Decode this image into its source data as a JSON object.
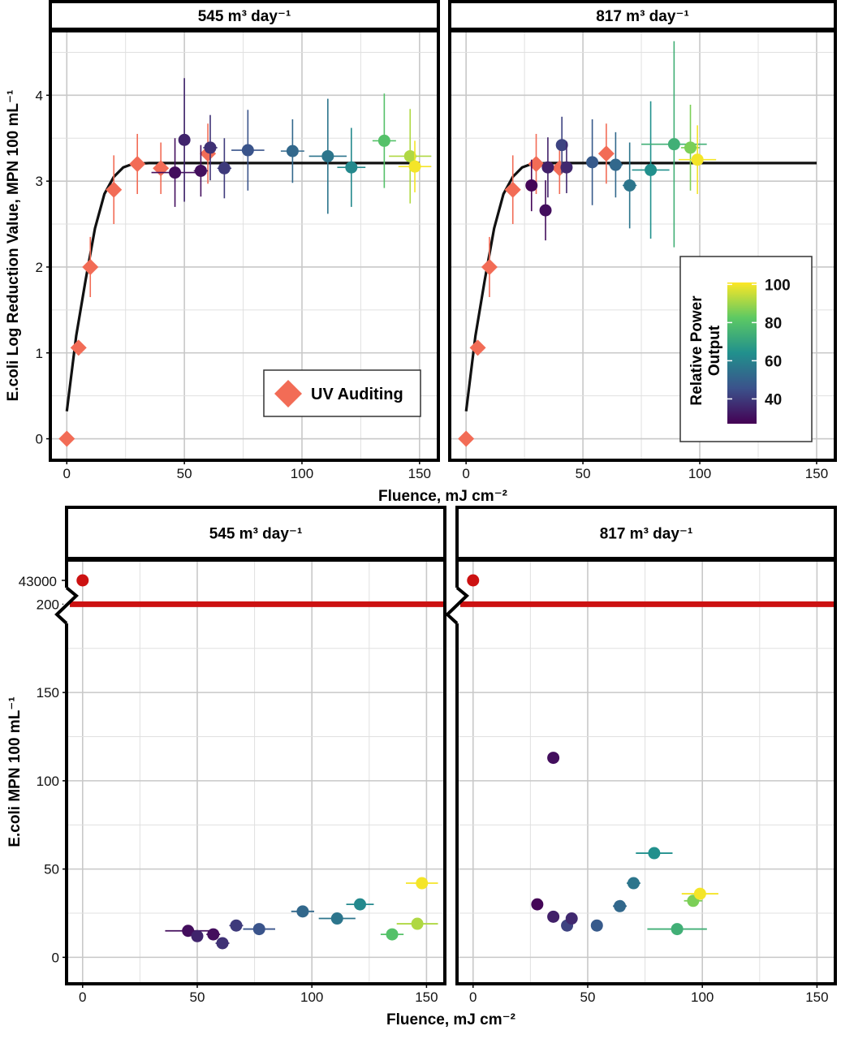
{
  "chart_data": [
    {
      "type": "scatter",
      "panel_titles": [
        "545 m³ day⁻¹",
        "817 m³ day⁻¹"
      ],
      "xlabel": "Fluence, mJ cm⁻²",
      "ylabel": "E.coli Log Reduction Value, MPN 100 mL⁻¹",
      "xlim": [
        -7,
        158
      ],
      "ylim": [
        -0.25,
        4.75
      ],
      "x_ticks": [
        0,
        50,
        100,
        150
      ],
      "y_ticks": [
        0,
        1,
        2,
        3,
        4
      ],
      "grid": true,
      "legend": {
        "label": "UV Auditing",
        "placement": "bottom-right",
        "color": "#f26c56"
      },
      "colorbar": {
        "title": [
          "Relative Power",
          "Output"
        ],
        "range": [
          27,
          101
        ],
        "ticks": [
          40,
          60,
          80,
          100
        ],
        "placement": "right",
        "colors": [
          "#440154",
          "#3b528b",
          "#21908d",
          "#5dc963",
          "#fde725"
        ]
      },
      "auditing_curve": [
        [
          0,
          0.32
        ],
        [
          4,
          1.2
        ],
        [
          8,
          1.85
        ],
        [
          12,
          2.45
        ],
        [
          16,
          2.85
        ],
        [
          20,
          3.05
        ],
        [
          24,
          3.16
        ],
        [
          28,
          3.2
        ],
        [
          35,
          3.21
        ],
        [
          150,
          3.21
        ]
      ],
      "panels": [
        {
          "title": "545 m³ day⁻¹",
          "auditing_points": [
            {
              "x": 0,
              "y": 0,
              "y_err": 0
            },
            {
              "x": 5,
              "y": 1.06,
              "y_err": 0.07
            },
            {
              "x": 10,
              "y": 2.0,
              "y_err": 0.35
            },
            {
              "x": 20,
              "y": 2.9,
              "y_err": 0.4
            },
            {
              "x": 30,
              "y": 3.2,
              "y_err": 0.35
            },
            {
              "x": 40,
              "y": 3.15,
              "y_err": 0.3
            },
            {
              "x": 60,
              "y": 3.32,
              "y_err": 0.35
            }
          ],
          "points": [
            {
              "x": 46,
              "y": 3.1,
              "x_err": 10,
              "y_err": 0.4,
              "power": 30
            },
            {
              "x": 50,
              "y": 3.48,
              "x_err": 0,
              "y_err": 0.72,
              "power": 35
            },
            {
              "x": 57,
              "y": 3.12,
              "x_err": 3,
              "y_err": 0.3,
              "power": 30
            },
            {
              "x": 61,
              "y": 3.39,
              "x_err": 3,
              "y_err": 0.38,
              "power": 38
            },
            {
              "x": 67,
              "y": 3.15,
              "x_err": 3,
              "y_err": 0.35,
              "power": 40
            },
            {
              "x": 77,
              "y": 3.36,
              "x_err": 7,
              "y_err": 0.47,
              "power": 46
            },
            {
              "x": 96,
              "y": 3.35,
              "x_err": 5,
              "y_err": 0.37,
              "power": 52
            },
            {
              "x": 111,
              "y": 3.29,
              "x_err": 8,
              "y_err": 0.67,
              "power": 56
            },
            {
              "x": 121,
              "y": 3.16,
              "x_err": 6,
              "y_err": 0.46,
              "power": 62
            },
            {
              "x": 135,
              "y": 3.47,
              "x_err": 5,
              "y_err": 0.55,
              "power": 80
            },
            {
              "x": 146,
              "y": 3.29,
              "x_err": 9,
              "y_err": 0.55,
              "power": 92
            },
            {
              "x": 148,
              "y": 3.17,
              "x_err": 7,
              "y_err": 0.3,
              "power": 100
            }
          ]
        },
        {
          "title": "817 m³ day⁻¹",
          "auditing_points": [
            {
              "x": 0,
              "y": 0,
              "y_err": 0
            },
            {
              "x": 5,
              "y": 1.06,
              "y_err": 0.07
            },
            {
              "x": 10,
              "y": 2.0,
              "y_err": 0.35
            },
            {
              "x": 20,
              "y": 2.9,
              "y_err": 0.4
            },
            {
              "x": 30,
              "y": 3.2,
              "y_err": 0.35
            },
            {
              "x": 40,
              "y": 3.15,
              "y_err": 0.3
            },
            {
              "x": 60,
              "y": 3.32,
              "y_err": 0.35
            }
          ],
          "points": [
            {
              "x": 28,
              "y": 2.95,
              "x_err": 2,
              "y_err": 0.3,
              "power": 28
            },
            {
              "x": 34,
              "y": 2.66,
              "x_err": 0,
              "y_err": 0.35,
              "power": 30
            },
            {
              "x": 35,
              "y": 3.16,
              "x_err": 2,
              "y_err": 0.35,
              "power": 34
            },
            {
              "x": 41,
              "y": 3.42,
              "x_err": 2,
              "y_err": 0.33,
              "power": 42
            },
            {
              "x": 43,
              "y": 3.16,
              "x_err": 2,
              "y_err": 0.3,
              "power": 36
            },
            {
              "x": 54,
              "y": 3.22,
              "x_err": 2,
              "y_err": 0.5,
              "power": 48
            },
            {
              "x": 64,
              "y": 3.19,
              "x_err": 3,
              "y_err": 0.38,
              "power": 52
            },
            {
              "x": 70,
              "y": 2.95,
              "x_err": 3,
              "y_err": 0.5,
              "power": 56
            },
            {
              "x": 79,
              "y": 3.13,
              "x_err": 8,
              "y_err": 0.8,
              "power": 64
            },
            {
              "x": 89,
              "y": 3.43,
              "x_err": 14,
              "y_err": 1.2,
              "power": 74
            },
            {
              "x": 96,
              "y": 3.39,
              "x_err": 4,
              "y_err": 0.5,
              "power": 86
            },
            {
              "x": 99,
              "y": 3.25,
              "x_err": 8,
              "y_err": 0.4,
              "power": 100
            }
          ]
        }
      ]
    },
    {
      "type": "scatter",
      "panel_titles": [
        "545 m³ day⁻¹",
        "817 m³ day⁻¹"
      ],
      "xlabel": "Fluence, mJ cm⁻²",
      "ylabel": "E.coli MPN 100 mL⁻¹",
      "xlim": [
        -7,
        158
      ],
      "ylim": [
        -15,
        225
      ],
      "x_ticks": [
        0,
        50,
        100,
        150
      ],
      "y_ticks": [
        0,
        50,
        100,
        150,
        200
      ],
      "y_break_label": "43000",
      "grid": true,
      "threshold": {
        "y": 200,
        "color": "#cc1111"
      },
      "influent_color": "#cc1111",
      "panels": [
        {
          "title": "545 m³ day⁻¹",
          "influent": {
            "x": 0,
            "y": 43000
          },
          "points": [
            {
              "x": 46,
              "y": 15,
              "x_err": 10,
              "power": 30
            },
            {
              "x": 50,
              "y": 12,
              "x_err": 0,
              "power": 35
            },
            {
              "x": 57,
              "y": 13,
              "x_err": 3,
              "power": 30
            },
            {
              "x": 61,
              "y": 8,
              "x_err": 3,
              "power": 38
            },
            {
              "x": 67,
              "y": 18,
              "x_err": 3,
              "power": 40
            },
            {
              "x": 77,
              "y": 16,
              "x_err": 7,
              "power": 46
            },
            {
              "x": 96,
              "y": 26,
              "x_err": 5,
              "power": 52
            },
            {
              "x": 111,
              "y": 22,
              "x_err": 8,
              "power": 56
            },
            {
              "x": 121,
              "y": 30,
              "x_err": 6,
              "power": 62
            },
            {
              "x": 135,
              "y": 13,
              "x_err": 5,
              "power": 80
            },
            {
              "x": 146,
              "y": 19,
              "x_err": 9,
              "power": 92
            },
            {
              "x": 148,
              "y": 42,
              "x_err": 7,
              "power": 100
            }
          ]
        },
        {
          "title": "817 m³ day⁻¹",
          "influent": {
            "x": 0,
            "y": 43000
          },
          "points": [
            {
              "x": 28,
              "y": 30,
              "x_err": 2,
              "power": 28
            },
            {
              "x": 35,
              "y": 113,
              "x_err": 0,
              "power": 30
            },
            {
              "x": 35,
              "y": 23,
              "x_err": 2,
              "power": 34
            },
            {
              "x": 41,
              "y": 18,
              "x_err": 2,
              "power": 42
            },
            {
              "x": 43,
              "y": 22,
              "x_err": 2,
              "power": 36
            },
            {
              "x": 54,
              "y": 18,
              "x_err": 2,
              "power": 48
            },
            {
              "x": 64,
              "y": 29,
              "x_err": 3,
              "power": 52
            },
            {
              "x": 70,
              "y": 42,
              "x_err": 3,
              "power": 56
            },
            {
              "x": 79,
              "y": 59,
              "x_err": 8,
              "power": 64
            },
            {
              "x": 89,
              "y": 16,
              "x_err": 13,
              "power": 74
            },
            {
              "x": 96,
              "y": 32,
              "x_err": 4,
              "power": 86
            },
            {
              "x": 99,
              "y": 36,
              "x_err": 8,
              "power": 100
            }
          ]
        }
      ]
    }
  ]
}
